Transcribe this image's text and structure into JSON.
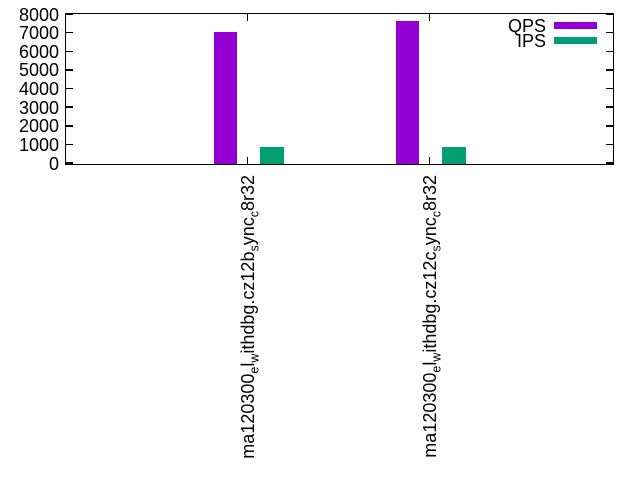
{
  "chart_data": {
    "type": "bar",
    "title": "",
    "xlabel": "",
    "ylabel": "",
    "categories": [
      "ma120300_el_withdbg.cz12b_sync_c8r32",
      "ma120300_el_withdbg.cz12c_sync_c8r32"
    ],
    "categories_rich": [
      [
        {
          "t": "ma120300"
        },
        {
          "t": "e",
          "sub": true
        },
        {
          "t": "l"
        },
        {
          "t": "w",
          "sub": true
        },
        {
          "t": "ithdbg.cz12b"
        },
        {
          "t": "s",
          "sub": true
        },
        {
          "t": "ync"
        },
        {
          "t": "c",
          "sub": true
        },
        {
          "t": "8r32"
        }
      ],
      [
        {
          "t": "ma120300"
        },
        {
          "t": "e",
          "sub": true
        },
        {
          "t": "l"
        },
        {
          "t": "w",
          "sub": true
        },
        {
          "t": "ithdbg.cz12c"
        },
        {
          "t": "s",
          "sub": true
        },
        {
          "t": "ync"
        },
        {
          "t": "c",
          "sub": true
        },
        {
          "t": "8r32"
        }
      ]
    ],
    "series": [
      {
        "name": "QPS",
        "color": "#9400d3",
        "values": [
          7100,
          7700
        ]
      },
      {
        "name": "IPS",
        "color": "#009e73",
        "values": [
          920,
          920
        ]
      }
    ],
    "ylim": [
      0,
      8000
    ],
    "ytick_step": 1000,
    "yticks": [
      "0",
      "1000",
      "2000",
      "3000",
      "4000",
      "5000",
      "6000",
      "7000",
      "8000"
    ],
    "grid": false,
    "legend_position": "top-right",
    "axis_color": "#000000",
    "background_color": "#ffffff"
  }
}
